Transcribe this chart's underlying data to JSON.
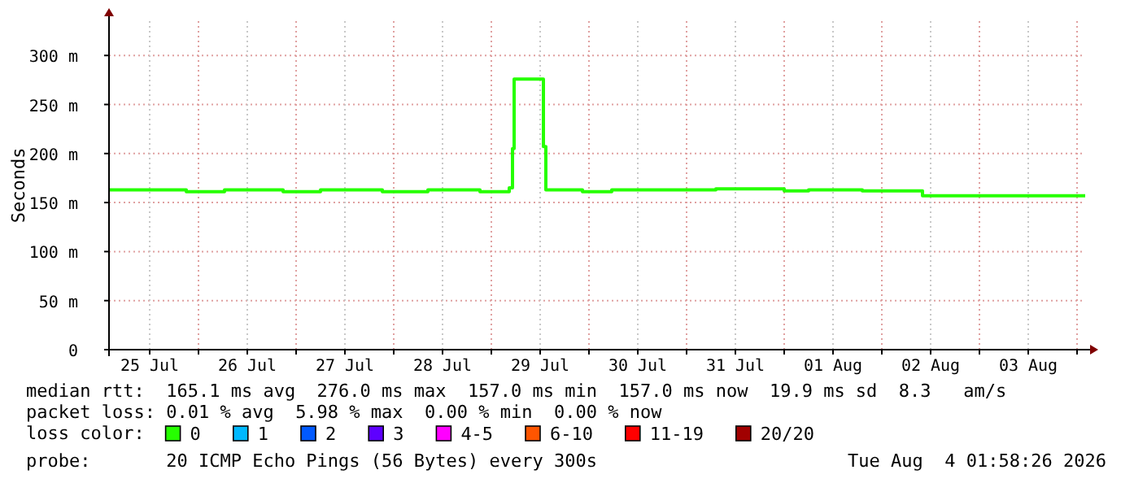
{
  "chart_data": {
    "type": "step",
    "ylabel": "Seconds",
    "legend_title": "loss color:",
    "legend": "bottom",
    "grid": true,
    "xlim": [
      "2026-07-25T02:00",
      "2026-08-04T02:00"
    ],
    "xticks": [
      {
        "value": "2026-07-25T12:00",
        "label": "25 Jul"
      },
      {
        "value": "2026-07-26T00:00",
        "label": null
      },
      {
        "value": "2026-07-26T12:00",
        "label": "26 Jul"
      },
      {
        "value": "2026-07-27T00:00",
        "label": null
      },
      {
        "value": "2026-07-27T12:00",
        "label": "27 Jul"
      },
      {
        "value": "2026-07-28T00:00",
        "label": null
      },
      {
        "value": "2026-07-28T12:00",
        "label": "28 Jul"
      },
      {
        "value": "2026-07-29T00:00",
        "label": null
      },
      {
        "value": "2026-07-29T12:00",
        "label": "29 Jul"
      },
      {
        "value": "2026-07-30T00:00",
        "label": null
      },
      {
        "value": "2026-07-30T12:00",
        "label": "30 Jul"
      },
      {
        "value": "2026-07-31T00:00",
        "label": null
      },
      {
        "value": "2026-07-31T12:00",
        "label": "31 Jul"
      },
      {
        "value": "2026-08-01T00:00",
        "label": null
      },
      {
        "value": "2026-08-01T12:00",
        "label": "01 Aug"
      },
      {
        "value": "2026-08-02T00:00",
        "label": null
      },
      {
        "value": "2026-08-02T12:00",
        "label": "02 Aug"
      },
      {
        "value": "2026-08-03T00:00",
        "label": null
      },
      {
        "value": "2026-08-03T12:00",
        "label": "03 Aug"
      },
      {
        "value": "2026-08-04T00:00",
        "label": null
      }
    ],
    "ylim": [
      0,
      335
    ],
    "yticks": [
      0,
      {
        "value": 50,
        "label": "50 m"
      },
      {
        "value": 100,
        "label": "100 m"
      },
      {
        "value": 150,
        "label": "150 m"
      },
      {
        "value": 200,
        "label": "200 m"
      },
      {
        "value": 250,
        "label": "250 m"
      },
      {
        "value": 300,
        "label": "300 m"
      }
    ],
    "series": [
      {
        "name": "0",
        "color": "#26ff00",
        "x": [
          "2026-07-25T02:00",
          "2026-07-25T21:00",
          "2026-07-26T06:24",
          "2026-07-26T20:48",
          "2026-07-27T06:00",
          "2026-07-27T21:12",
          "2026-07-28T08:24",
          "2026-07-28T21:12",
          "2026-07-29T04:24",
          "2026-07-29T05:12",
          "2026-07-29T05:36",
          "2026-07-29T12:48",
          "2026-07-29T13:24",
          "2026-07-29T22:24",
          "2026-07-30T05:36",
          "2026-07-31T07:12",
          "2026-08-01T00:00",
          "2026-08-01T06:00",
          "2026-08-01T19:12",
          "2026-08-02T10:00",
          "2026-08-04T02:00"
        ],
        "values": [
          163,
          161,
          163,
          161,
          163,
          161,
          163,
          161,
          165,
          205,
          276,
          207,
          163,
          161,
          163,
          164,
          162,
          163,
          162,
          157,
          157
        ]
      },
      {
        "name": "1",
        "color": "#00b8ff"
      },
      {
        "name": "2",
        "color": "#0059ff"
      },
      {
        "name": "3",
        "color": "#5e00ff"
      },
      {
        "name": "4-5",
        "color": "#ff00ff"
      },
      {
        "name": "6-10",
        "color": "#ff5500"
      },
      {
        "name": "11-19",
        "color": "#ff0000"
      },
      {
        "name": "20/20",
        "color": "#a10000"
      }
    ],
    "annotations": [
      "median rtt:  165.1 ms avg  276.0 ms max  157.0 ms min  157.0 ms now  19.9 ms sd  8.3   am/s",
      "packet loss: 0.01 % avg  5.98 % max  0.00 % min  0.00 % now",
      "probe:       20 ICMP Echo Pings (56 Bytes) every 300s",
      "Tue Aug  4 01:58:26 2026"
    ]
  }
}
